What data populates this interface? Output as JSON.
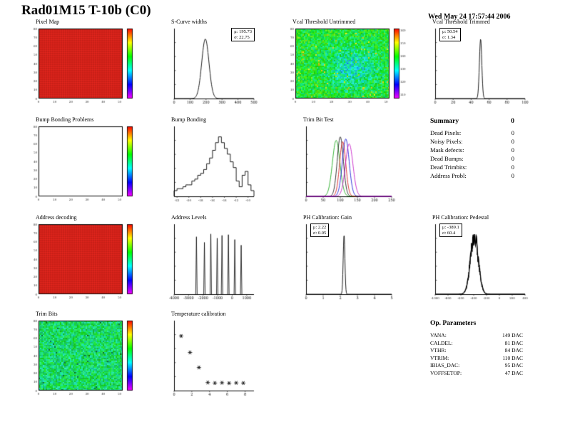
{
  "page": {
    "title": "Rad01M15 T-10b (C0)",
    "date": "Wed May 24 17:57:44 2006"
  },
  "summary": {
    "heading": "Summary",
    "total": "0",
    "rows": [
      {
        "label": "Dead Pixels:",
        "value": "0"
      },
      {
        "label": "Noisy Pixels:",
        "value": "0"
      },
      {
        "label": "Mask defects:",
        "value": "0"
      },
      {
        "label": "Dead Bumps:",
        "value": "0"
      },
      {
        "label": "Dead Trimbits:",
        "value": "0"
      },
      {
        "label": "Address Probl:",
        "value": "0"
      }
    ]
  },
  "op_parameters": {
    "heading": "Op. Parameters",
    "rows": [
      {
        "label": "VANA:",
        "value": "149 DAC"
      },
      {
        "label": "CALDEL:",
        "value": "81 DAC"
      },
      {
        "label": "VTHR:",
        "value": "84 DAC"
      },
      {
        "label": "VTRIM:",
        "value": "110 DAC"
      },
      {
        "label": "IBIAS_DAC:",
        "value": "95 DAC"
      },
      {
        "label": "VOFFSETOP:",
        "value": "47 DAC"
      }
    ]
  },
  "chart_data": [
    {
      "id": "pixel_map",
      "type": "heatmap",
      "title": "Pixel Map",
      "style": "red-grid",
      "xlim": [
        0,
        52
      ],
      "ylim": [
        0,
        80
      ],
      "xticks": [
        0,
        10,
        20,
        30,
        40,
        50
      ],
      "yticks": [
        0,
        10,
        20,
        30,
        40,
        50,
        60,
        70,
        80
      ],
      "colorbar": true,
      "uniform_color": "#e8271e"
    },
    {
      "id": "scurve_widths",
      "type": "histogram",
      "title": "S-Curve widths",
      "mu": 195.73,
      "sigma": 22.75,
      "xlim": [
        0,
        500
      ],
      "xticks": [
        0,
        100,
        200,
        300,
        400,
        500
      ],
      "stats_lines": [
        "μ: 195.73",
        "σ: 22.75"
      ],
      "stats_side": "right"
    },
    {
      "id": "vcal_untrimmed",
      "type": "heatmap",
      "title": "Vcal Threshold Untrimmed",
      "style": "noise-thresh",
      "xlim": [
        0,
        52
      ],
      "ylim": [
        0,
        80
      ],
      "xticks": [
        0,
        10,
        20,
        30,
        40,
        50
      ],
      "yticks": [
        0,
        10,
        20,
        30,
        40,
        50,
        60,
        70,
        80
      ],
      "colorbar": true,
      "colorbar_ticks": [
        "160",
        "150",
        "140",
        "130",
        "120",
        "110"
      ]
    },
    {
      "id": "vcal_trimmed",
      "type": "histogram",
      "title": "Vcal Threshold Trimmed",
      "mu": 50.54,
      "sigma": 1.34,
      "xlim": [
        0,
        100
      ],
      "xticks": [
        0,
        20,
        40,
        60,
        80,
        100
      ],
      "stats_lines": [
        "μ: 50.54",
        "σ: 1.34"
      ],
      "stats_side": "left"
    },
    {
      "id": "bump_bonding_problems",
      "type": "heatmap",
      "title": "Bump Bonding Problems",
      "style": "empty",
      "xlim": [
        0,
        52
      ],
      "ylim": [
        0,
        80
      ],
      "xticks": [
        0,
        10,
        20,
        30,
        40,
        50
      ],
      "yticks": [
        0,
        10,
        20,
        30,
        40,
        50,
        60,
        70,
        80
      ],
      "colorbar": true
    },
    {
      "id": "bump_bonding",
      "type": "step_histogram",
      "title": "Bump Bonding",
      "xlim": [
        -22.5,
        -9
      ],
      "xticks": [
        -22,
        -20,
        -18,
        -16,
        -14,
        -12,
        -10
      ],
      "values": [
        3,
        4,
        4,
        5,
        6,
        6,
        8,
        9,
        11,
        12,
        14,
        17,
        20,
        24,
        28,
        31,
        28,
        25,
        22,
        18,
        15,
        8,
        5,
        11,
        13,
        6,
        3
      ]
    },
    {
      "id": "trim_bit_test",
      "type": "multi_histogram",
      "title": "Trim Bit Test",
      "xlim": [
        0,
        250
      ],
      "xticks": [
        0,
        50,
        100,
        150,
        200,
        250
      ],
      "series": [
        {
          "name": "green",
          "color": "#00a000",
          "mu": 88,
          "sigma": 11
        },
        {
          "name": "black",
          "color": "#000000",
          "mu": 100,
          "sigma": 9
        },
        {
          "name": "red",
          "color": "#d00000",
          "mu": 107,
          "sigma": 9
        },
        {
          "name": "blue",
          "color": "#0000d0",
          "mu": 116,
          "sigma": 10
        },
        {
          "name": "magenta",
          "color": "#c000c0",
          "mu": 126,
          "sigma": 11
        }
      ]
    },
    {
      "id": "address_decoding",
      "type": "heatmap",
      "title": "Address decoding",
      "style": "red-grid",
      "xlim": [
        0,
        52
      ],
      "ylim": [
        0,
        80
      ],
      "xticks": [
        0,
        10,
        20,
        30,
        40,
        50
      ],
      "yticks": [
        0,
        10,
        20,
        30,
        40,
        50,
        60,
        70,
        80
      ],
      "colorbar": true,
      "uniform_color": "#e8271e"
    },
    {
      "id": "address_levels",
      "type": "spikes",
      "title": "Address Levels",
      "xlim": [
        -4000,
        1500
      ],
      "xticks": [
        -4000,
        -3000,
        -2000,
        -1000,
        0,
        1000
      ],
      "log_y": true,
      "spikes": [
        {
          "x": -2460,
          "h": 0.82
        },
        {
          "x": -1910,
          "h": 0.74
        },
        {
          "x": -1470,
          "h": 0.86
        },
        {
          "x": -1030,
          "h": 0.8
        },
        {
          "x": -700,
          "h": 0.84
        },
        {
          "x": -260,
          "h": 0.85
        },
        {
          "x": 180,
          "h": 0.78
        },
        {
          "x": 620,
          "h": 0.7
        }
      ]
    },
    {
      "id": "ph_calibration_gain",
      "type": "histogram",
      "title": "PH Calibration: Gain",
      "mu": 2.22,
      "sigma": 0.05,
      "xlim": [
        0,
        5
      ],
      "xticks": [
        0,
        1,
        2,
        3,
        4,
        5
      ],
      "stats_lines": [
        "μ: 2.22",
        "σ: 0.05"
      ],
      "stats_side": "left"
    },
    {
      "id": "ph_calibration_pedestal",
      "type": "histogram",
      "title": "PH Calibration: Pedestal",
      "mu": -389.1,
      "sigma": 60.4,
      "noisy": true,
      "xlim": [
        -1000,
        400
      ],
      "xticks": [
        -1000,
        -800,
        -600,
        -400,
        -200,
        0,
        200,
        400
      ],
      "stats_lines": [
        "μ: -389.1",
        "σ: 60.4"
      ],
      "stats_side": "left"
    },
    {
      "id": "trim_bits",
      "type": "heatmap",
      "title": "Trim Bits",
      "style": "noise-green",
      "xlim": [
        0,
        52
      ],
      "ylim": [
        0,
        80
      ],
      "xticks": [
        0,
        10,
        20,
        30,
        40,
        50
      ],
      "yticks": [
        0,
        10,
        20,
        30,
        40,
        50,
        60,
        70,
        80
      ],
      "colorbar": true
    },
    {
      "id": "temperature_calibration",
      "type": "scatter",
      "title": "Temperature calibration",
      "xlim": [
        0,
        9
      ],
      "ylim": [
        0,
        1000
      ],
      "xticks": [
        0,
        2,
        4,
        6,
        8
      ],
      "marker": "asterisk",
      "points": [
        [
          0.8,
          780
        ],
        [
          1.8,
          545
        ],
        [
          2.8,
          330
        ],
        [
          3.8,
          115
        ],
        [
          4.6,
          108
        ],
        [
          5.4,
          112
        ],
        [
          6.2,
          106
        ],
        [
          7.0,
          110
        ],
        [
          7.8,
          108
        ]
      ]
    }
  ]
}
